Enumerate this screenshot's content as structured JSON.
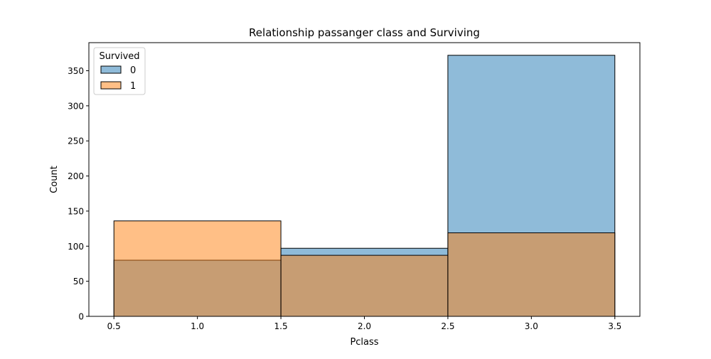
{
  "chart_data": {
    "type": "histogram",
    "title": "Relationship passanger class and Surviving",
    "xlabel": "Pclass",
    "ylabel": "Count",
    "xlim": [
      0.35,
      3.65
    ],
    "ylim": [
      0,
      390
    ],
    "x_ticks": [
      "0.5",
      "1.0",
      "1.5",
      "2.0",
      "2.5",
      "3.0",
      "3.5"
    ],
    "y_ticks": [
      "0",
      "50",
      "100",
      "150",
      "200",
      "250",
      "300",
      "350"
    ],
    "bins": [
      [
        0.5,
        1.5
      ],
      [
        1.5,
        2.5
      ],
      [
        2.5,
        3.5
      ]
    ],
    "series": [
      {
        "name": "0",
        "color": "#1f77b4",
        "values": [
          80,
          97,
          372
        ]
      },
      {
        "name": "1",
        "color": "#ff7f0e",
        "values": [
          136,
          87,
          119
        ]
      }
    ],
    "legend": {
      "title": "Survived",
      "position": "top-left"
    },
    "grid": false
  }
}
